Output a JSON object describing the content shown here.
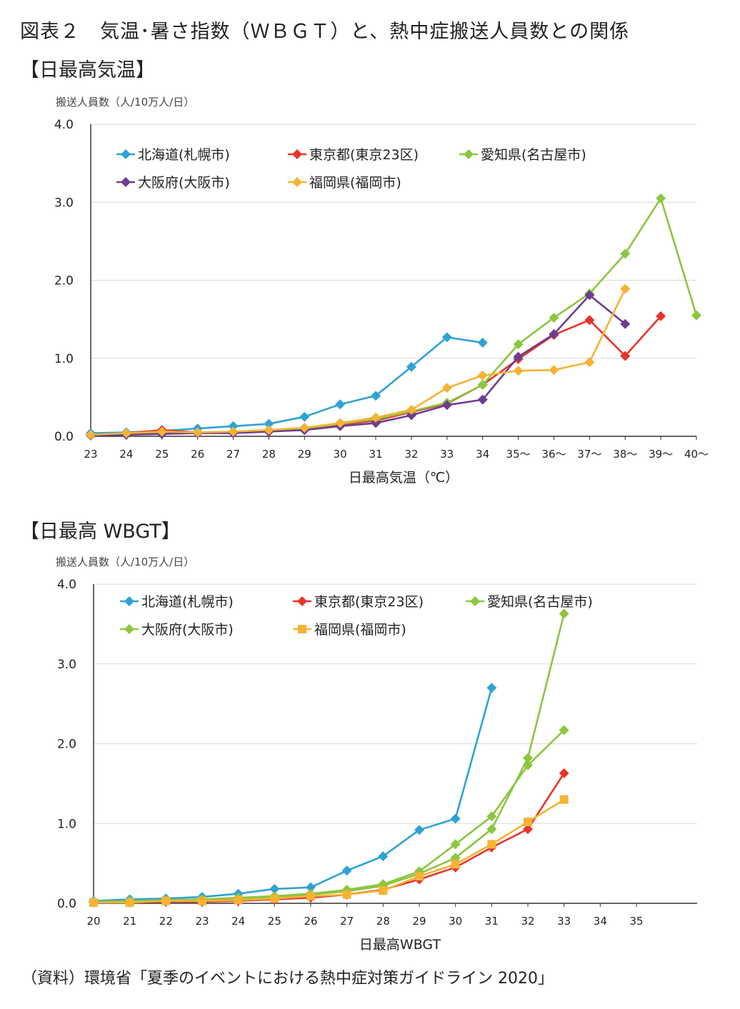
{
  "page": {
    "title": "図表２　気温･暑さ指数（ＷＢＧＴ）と、熱中症搬送人員数との関係",
    "source": "（資料）環境省「夏季のイベントにおける熱中症対策ガイドライン 2020」"
  },
  "colors": {
    "hokkaido": "#2ea2d6",
    "tokyo": "#e8342c",
    "aichi": "#8cc63f",
    "osaka": "#6e3d91",
    "fukuoka": "#f5b335",
    "axis": "#333333",
    "grid": "#d9d9d9"
  },
  "chart_data": [
    {
      "type": "line",
      "section_label": "【日最高気温】",
      "ylabel": "搬送人員数（人/10万人/日）",
      "xlabel": "日最高気温（℃）",
      "ylim": [
        0,
        4.0
      ],
      "yticks": [
        "0.0",
        "1.0",
        "2.0",
        "3.0",
        "4.0"
      ],
      "grid": true,
      "legend": "top-left",
      "categories": [
        "23",
        "24",
        "25",
        "26",
        "27",
        "28",
        "29",
        "30",
        "31",
        "32",
        "33",
        "34",
        "35〜",
        "36〜",
        "37〜",
        "38〜",
        "39〜",
        "40〜"
      ],
      "series": [
        {
          "name": "北海道(札幌市)",
          "color_key": "hokkaido",
          "marker": "diamond",
          "values": [
            0.04,
            0.05,
            0.07,
            0.1,
            0.13,
            0.16,
            0.25,
            0.41,
            0.52,
            0.89,
            1.27,
            1.2,
            null,
            null,
            null,
            null,
            null,
            null
          ]
        },
        {
          "name": "東京都(東京23区)",
          "color_key": "tokyo",
          "marker": "diamond",
          "values": [
            0.02,
            0.04,
            0.08,
            0.05,
            0.05,
            0.07,
            0.08,
            0.15,
            0.2,
            0.31,
            0.42,
            0.66,
            0.99,
            1.3,
            1.49,
            1.03,
            1.54,
            null
          ]
        },
        {
          "name": "愛知県(名古屋市)",
          "color_key": "aichi",
          "marker": "diamond",
          "values": [
            0.02,
            0.03,
            0.05,
            0.05,
            0.06,
            0.08,
            0.1,
            0.16,
            0.22,
            0.32,
            0.43,
            0.66,
            1.18,
            1.52,
            1.83,
            2.34,
            3.05,
            1.55
          ]
        },
        {
          "name": "大阪府(大阪市)",
          "color_key": "osaka",
          "marker": "diamond",
          "values": [
            0.01,
            0.02,
            0.03,
            0.04,
            0.04,
            0.06,
            0.08,
            0.13,
            0.17,
            0.27,
            0.4,
            0.47,
            1.02,
            1.31,
            1.81,
            1.44,
            null,
            null
          ]
        },
        {
          "name": "福岡県(福岡市)",
          "color_key": "fukuoka",
          "marker": "diamond",
          "values": [
            0.02,
            0.04,
            0.06,
            0.05,
            0.06,
            0.08,
            0.11,
            0.17,
            0.24,
            0.34,
            0.62,
            0.78,
            0.84,
            0.85,
            0.95,
            1.89,
            null,
            null
          ]
        }
      ]
    },
    {
      "type": "line",
      "section_label": "【日最高 WBGT】",
      "ylabel": "搬送人員数（人/10万人/日）",
      "xlabel": "日最高WBGT",
      "ylim": [
        0,
        4.0
      ],
      "yticks": [
        "0.0",
        "1.0",
        "2.0",
        "3.0",
        "4.0"
      ],
      "grid": true,
      "legend": "top-left",
      "categories": [
        "20",
        "21",
        "22",
        "23",
        "24",
        "25",
        "26",
        "27",
        "28",
        "29",
        "30",
        "31",
        "32",
        "33",
        "34",
        "35"
      ],
      "series": [
        {
          "name": "北海道(札幌市)",
          "color_key": "hokkaido",
          "marker": "diamond",
          "values": [
            0.03,
            0.05,
            0.06,
            0.08,
            0.12,
            0.18,
            0.2,
            0.41,
            0.59,
            0.92,
            1.06,
            2.7,
            null,
            null,
            null,
            null
          ]
        },
        {
          "name": "東京都(東京23区)",
          "color_key": "tokyo",
          "marker": "diamond",
          "values": [
            0.01,
            0.01,
            0.02,
            0.02,
            0.03,
            0.05,
            0.07,
            0.11,
            0.17,
            0.3,
            0.45,
            0.7,
            0.93,
            1.63,
            null,
            null
          ]
        },
        {
          "name": "愛知県(名古屋市)",
          "color_key": "aichi",
          "marker": "diamond",
          "values": [
            0.02,
            0.03,
            0.04,
            0.05,
            0.07,
            0.09,
            0.12,
            0.17,
            0.24,
            0.4,
            0.74,
            1.09,
            1.73,
            2.17,
            null,
            null
          ]
        },
        {
          "name": "大阪府(大阪市)",
          "color_key": "aichi",
          "marker": "diamond",
          "values": [
            0.01,
            0.02,
            0.03,
            0.04,
            0.06,
            0.08,
            0.11,
            0.15,
            0.22,
            0.37,
            0.57,
            0.93,
            1.82,
            3.63,
            null,
            null
          ]
        },
        {
          "name": "福岡県(福岡市)",
          "color_key": "fukuoka",
          "marker": "square",
          "values": [
            0.01,
            0.01,
            0.03,
            0.03,
            0.04,
            0.06,
            0.09,
            0.11,
            0.16,
            0.34,
            0.49,
            0.74,
            1.02,
            1.3,
            null,
            null
          ]
        }
      ]
    }
  ]
}
